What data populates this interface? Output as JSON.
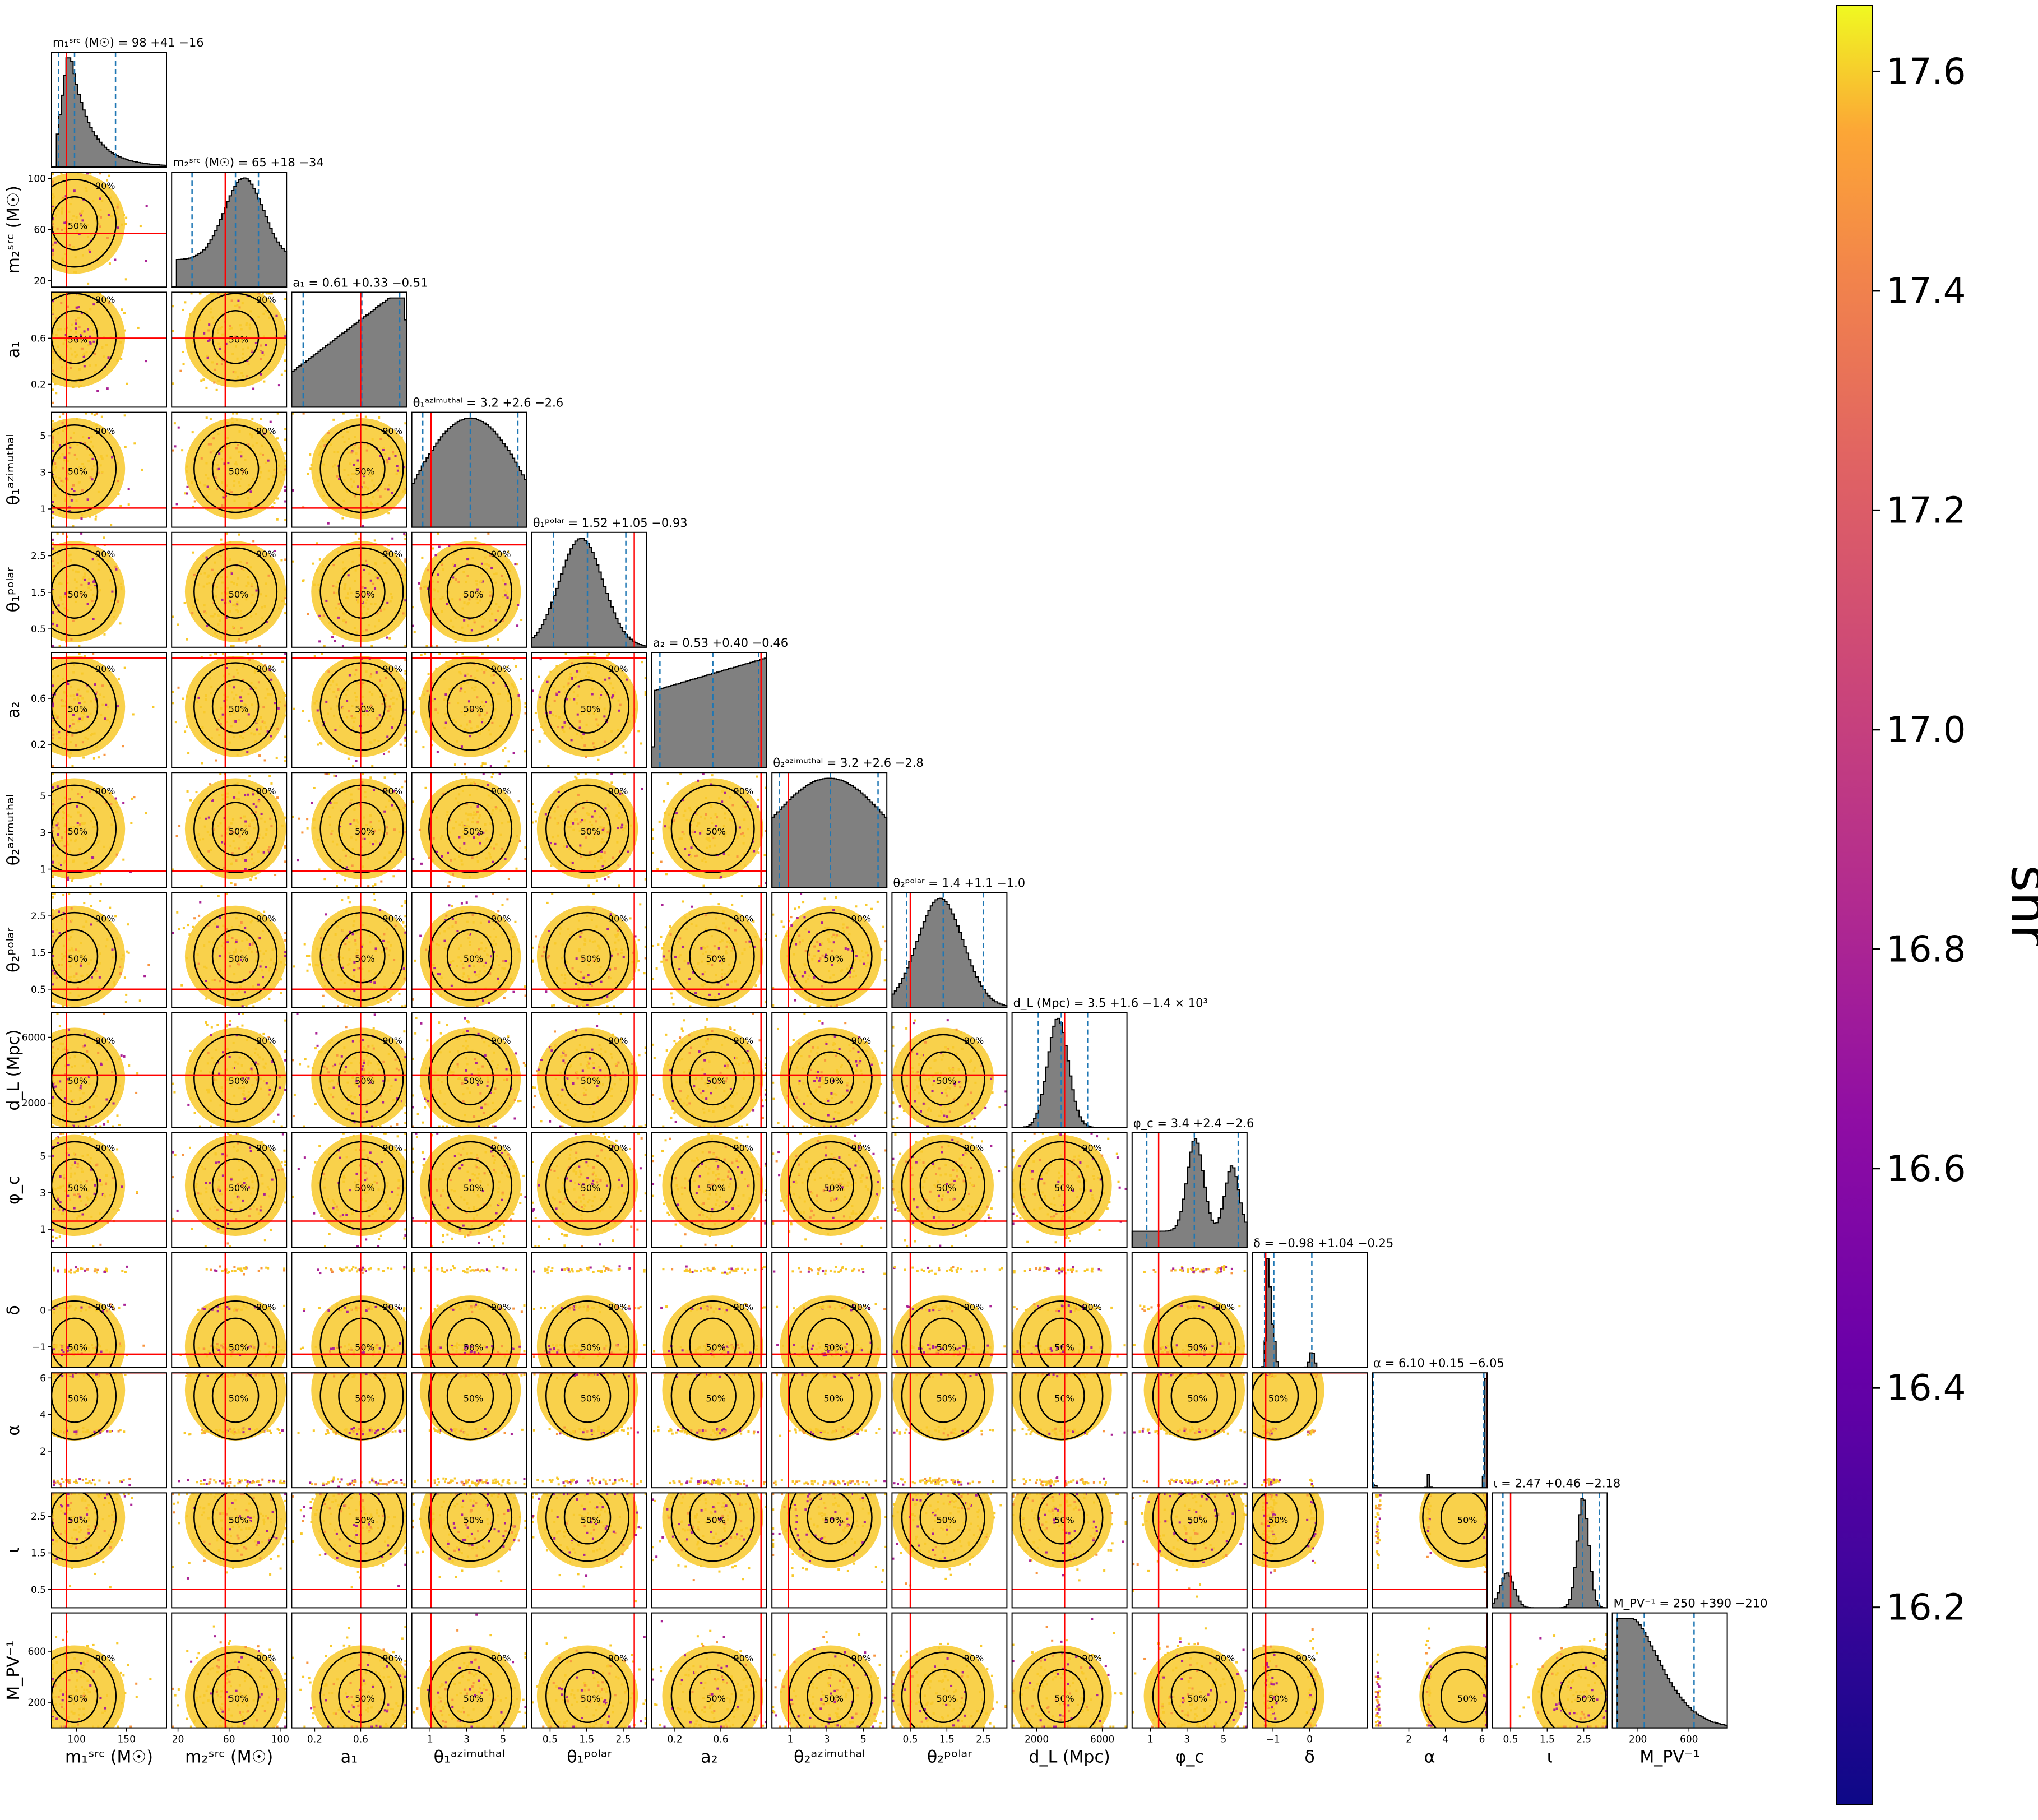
{
  "chart_data": {
    "type": "scatter",
    "subtype": "corner-plot",
    "parameters": [
      {
        "key": "m1",
        "axis_label": "m₁ˢʳᶜ (M☉)",
        "title": "m₁ˢʳᶜ (M☉) = 98 +41 −16",
        "median": 98,
        "plus": 41,
        "minus": 16,
        "range": [
          75,
          190
        ],
        "ticks": [
          100,
          150
        ],
        "tick_labels": [
          "100",
          "150"
        ],
        "truth": 90
      },
      {
        "key": "m2",
        "axis_label": "m₂ˢʳᶜ (M☉)",
        "title": "m₂ˢʳᶜ (M☉) = 65 +18 −34",
        "median": 65,
        "plus": 18,
        "minus": 34,
        "range": [
          15,
          105
        ],
        "ticks": [
          20,
          60,
          100
        ],
        "tick_labels": [
          "20",
          "60",
          "100"
        ],
        "truth": 57
      },
      {
        "key": "a1",
        "axis_label": "a₁",
        "title": "a₁ = 0.61 +0.33 −0.51",
        "median": 0.61,
        "plus": 0.33,
        "minus": 0.51,
        "range": [
          0,
          1
        ],
        "ticks": [
          0.2,
          0.6
        ],
        "tick_labels": [
          "0.2",
          "0.6"
        ],
        "truth": 0.6
      },
      {
        "key": "th1az",
        "axis_label": "θ₁ᵃᶻⁱᵐᵘᵗʰᵃˡ",
        "title": "θ₁ᵃᶻⁱᵐᵘᵗʰᵃˡ = 3.2 +2.6 −2.6",
        "median": 3.2,
        "plus": 2.6,
        "minus": 2.6,
        "range": [
          0,
          6.28
        ],
        "ticks": [
          1,
          3,
          5
        ],
        "tick_labels": [
          "1",
          "3",
          "5"
        ],
        "truth": 1.05
      },
      {
        "key": "th1pol",
        "axis_label": "θ₁ᵖᵒˡᵃʳ",
        "title": "θ₁ᵖᵒˡᵃʳ = 1.52 +1.05 −0.93",
        "median": 1.52,
        "plus": 1.05,
        "minus": 0.93,
        "range": [
          0,
          3.14
        ],
        "ticks": [
          0.5,
          1.5,
          2.5
        ],
        "tick_labels": [
          "0.5",
          "1.5",
          "2.5"
        ],
        "truth": 2.8
      },
      {
        "key": "a2",
        "axis_label": "a₂",
        "title": "a₂ = 0.53 +0.40 −0.46",
        "median": 0.53,
        "plus": 0.4,
        "minus": 0.46,
        "range": [
          0,
          1
        ],
        "ticks": [
          0.2,
          0.6
        ],
        "tick_labels": [
          "0.2",
          "0.6"
        ],
        "truth": 0.95
      },
      {
        "key": "th2az",
        "axis_label": "θ₂ᵃᶻⁱᵐᵘᵗʰᵃˡ",
        "title": "θ₂ᵃᶻⁱᵐᵘᵗʰᵃˡ = 3.2 +2.6 −2.8",
        "median": 3.2,
        "plus": 2.6,
        "minus": 2.8,
        "range": [
          0,
          6.28
        ],
        "ticks": [
          1,
          3,
          5
        ],
        "tick_labels": [
          "1",
          "3",
          "5"
        ],
        "truth": 0.9
      },
      {
        "key": "th2pol",
        "axis_label": "θ₂ᵖᵒˡᵃʳ",
        "title": "θ₂ᵖᵒˡᵃʳ = 1.4 +1.1 −1.0",
        "median": 1.4,
        "plus": 1.1,
        "minus": 1.0,
        "range": [
          0,
          3.14
        ],
        "ticks": [
          0.5,
          1.5,
          2.5
        ],
        "tick_labels": [
          "0.5",
          "1.5",
          "2.5"
        ],
        "truth": 0.5
      },
      {
        "key": "dL",
        "axis_label": "d_L (Mpc)",
        "title": "d_L (Mpc) = 3.5 +1.6 −1.4 × 10³",
        "median": 3500,
        "plus": 1600,
        "minus": 1400,
        "range": [
          500,
          7500
        ],
        "ticks": [
          2000,
          6000
        ],
        "tick_labels": [
          "2000",
          "6000"
        ],
        "truth": 3700
      },
      {
        "key": "phic",
        "axis_label": "φ_c",
        "title": "φ_c = 3.4 +2.4 −2.6",
        "median": 3.4,
        "plus": 2.4,
        "minus": 2.6,
        "range": [
          0,
          6.28
        ],
        "ticks": [
          1,
          3,
          5
        ],
        "tick_labels": [
          "1",
          "3",
          "5"
        ],
        "truth": 1.45
      },
      {
        "key": "delta",
        "axis_label": "δ",
        "title": "δ = −0.98 +1.04 −0.25",
        "median": -0.98,
        "plus": 1.04,
        "minus": 0.25,
        "range": [
          -1.57,
          1.57
        ],
        "ticks": [
          -1,
          0
        ],
        "tick_labels": [
          "−1",
          "0"
        ],
        "truth": -1.2
      },
      {
        "key": "alpha",
        "axis_label": "α",
        "title": "α = 6.10 +0.15 −6.05",
        "median": 6.1,
        "plus": 0.15,
        "minus": 6.05,
        "range": [
          0,
          6.28
        ],
        "ticks": [
          2,
          4,
          6
        ],
        "tick_labels": [
          "2",
          "4",
          "6"
        ],
        "truth": 6.28
      },
      {
        "key": "iota",
        "axis_label": "ι",
        "title": "ι = 2.47 +0.46 −2.18",
        "median": 2.47,
        "plus": 0.46,
        "minus": 2.18,
        "range": [
          0,
          3.14
        ],
        "ticks": [
          0.5,
          1.5,
          2.5
        ],
        "tick_labels": [
          "0.5",
          "1.5",
          "2.5"
        ],
        "truth": 0.5
      },
      {
        "key": "Mpv",
        "axis_label": "M_PV⁻¹",
        "title": "M_PV⁻¹ = 250 +390 −210",
        "median": 250,
        "plus": 390,
        "minus": 210,
        "range": [
          0,
          900
        ],
        "ticks": [
          200,
          600
        ],
        "tick_labels": [
          "200",
          "600"
        ],
        "truth": null
      }
    ],
    "contour_levels": [
      "50%",
      "90%"
    ],
    "colorbar": {
      "label": "snr",
      "range": [
        16.02,
        17.66
      ],
      "ticks": [
        16.2,
        16.4,
        16.6,
        16.8,
        17.0,
        17.2,
        17.4,
        17.6
      ],
      "tick_labels": [
        "16.2",
        "16.4",
        "16.6",
        "16.8",
        "17.0",
        "17.2",
        "17.4",
        "17.6"
      ],
      "colormap": "plasma"
    },
    "colors": {
      "hist_fill": "#808080",
      "truth_line": "#ff0000",
      "quantile_line": "#1f77b4",
      "contour": "#000000",
      "scatter_low": "#aa2395",
      "scatter_high": "#f8c92c"
    }
  }
}
